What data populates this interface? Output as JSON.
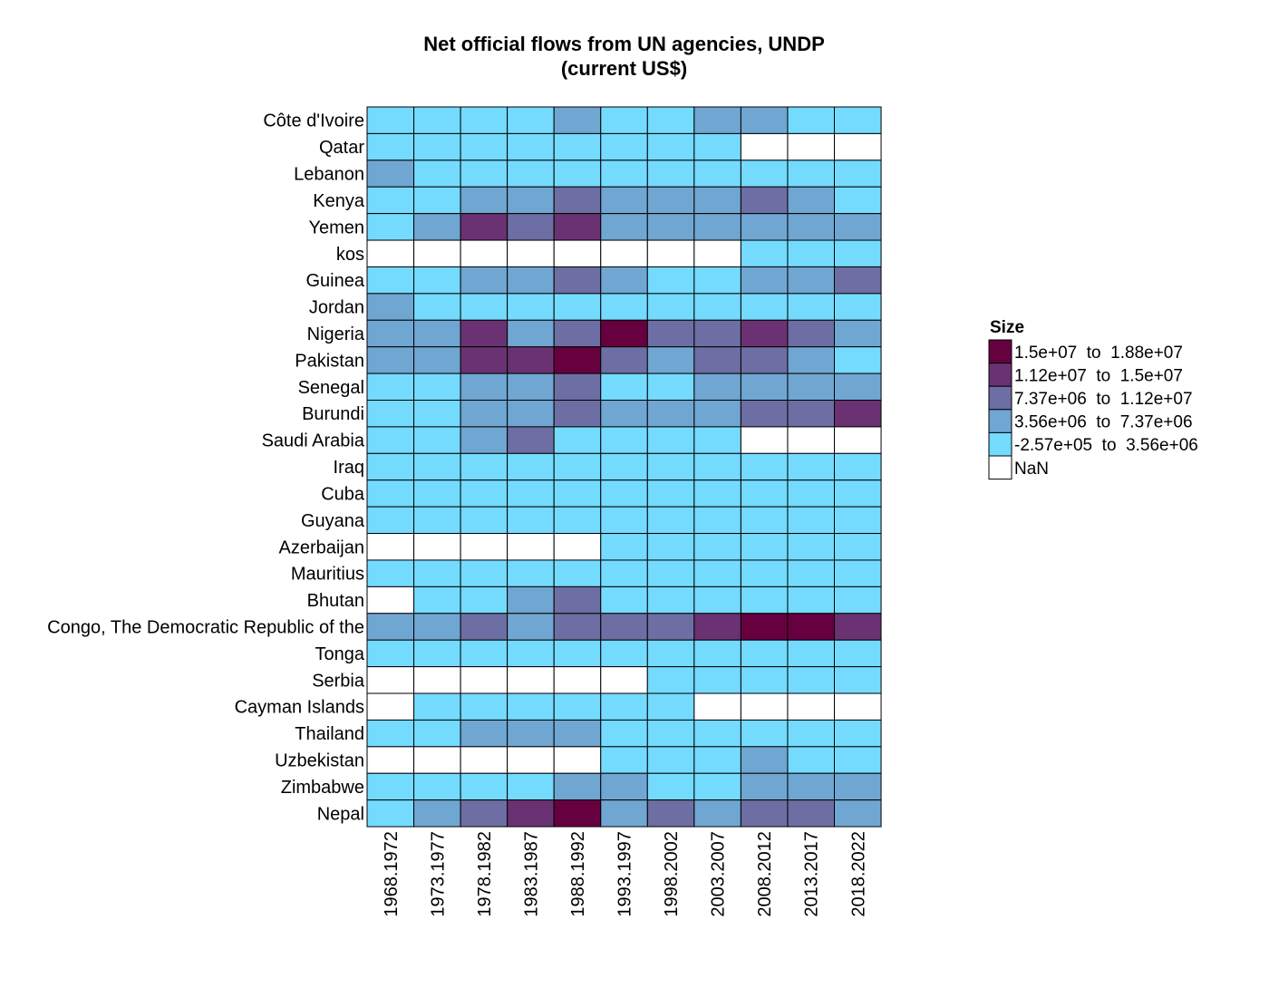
{
  "chart_data": {
    "type": "heatmap",
    "title_lines": [
      "Net official flows from UN agencies, UNDP",
      "(current US$)"
    ],
    "x_categories": [
      "1968.1972",
      "1973.1977",
      "1978.1982",
      "1983.1987",
      "1988.1992",
      "1993.1997",
      "1998.2002",
      "2003.2007",
      "2008.2012",
      "2013.2017",
      "2018.2022"
    ],
    "y_categories": [
      "Côte d'Ivoire",
      "Qatar",
      "Lebanon",
      "Kenya",
      "Yemen",
      "kos",
      "Guinea",
      "Jordan",
      "Nigeria",
      "Pakistan",
      "Senegal",
      "Burundi",
      "Saudi Arabia",
      "Iraq",
      "Cuba",
      "Guyana",
      "Azerbaijan",
      "Mauritius",
      "Bhutan",
      "Congo, The Democratic Republic of the",
      "Tonga",
      "Serbia",
      "Cayman Islands",
      "Thailand",
      "Uzbekistan",
      "Zimbabwe",
      "Nepal"
    ],
    "legend": {
      "title": "Size",
      "placement": "right",
      "bins": [
        {
          "label": "1.5e+07  to  1.88e+07",
          "color": "#67003f"
        },
        {
          "label": "1.12e+07  to  1.5e+07",
          "color": "#6a3272"
        },
        {
          "label": "7.37e+06  to  1.12e+07",
          "color": "#6d6ea3"
        },
        {
          "label": "3.56e+06  to  7.37e+06",
          "color": "#70a6d2"
        },
        {
          "label": "-2.57e+05  to  3.56e+06",
          "color": "#74dbff"
        },
        {
          "label": "NaN",
          "color": "#ffffff"
        }
      ]
    },
    "bin_index_note_levels": [
      0,
      1,
      2,
      3,
      4,
      5
    ],
    "cells": [
      [
        4,
        4,
        4,
        4,
        3,
        4,
        4,
        3,
        3,
        4,
        4
      ],
      [
        4,
        4,
        4,
        4,
        4,
        4,
        4,
        4,
        5,
        5,
        5
      ],
      [
        3,
        4,
        4,
        4,
        4,
        4,
        4,
        4,
        4,
        4,
        4
      ],
      [
        4,
        4,
        3,
        3,
        2,
        3,
        3,
        3,
        2,
        3,
        4
      ],
      [
        4,
        3,
        1,
        2,
        1,
        3,
        3,
        3,
        3,
        3,
        3
      ],
      [
        5,
        5,
        5,
        5,
        5,
        5,
        5,
        5,
        4,
        4,
        4
      ],
      [
        4,
        4,
        3,
        3,
        2,
        3,
        4,
        4,
        3,
        3,
        2
      ],
      [
        3,
        4,
        4,
        4,
        4,
        4,
        4,
        4,
        4,
        4,
        4
      ],
      [
        3,
        3,
        1,
        3,
        2,
        0,
        2,
        2,
        1,
        2,
        3
      ],
      [
        3,
        3,
        1,
        1,
        0,
        2,
        3,
        2,
        2,
        3,
        4
      ],
      [
        4,
        4,
        3,
        3,
        2,
        4,
        4,
        3,
        3,
        3,
        3
      ],
      [
        4,
        4,
        3,
        3,
        2,
        3,
        3,
        3,
        2,
        2,
        1
      ],
      [
        4,
        4,
        3,
        2,
        4,
        4,
        4,
        4,
        5,
        5,
        5
      ],
      [
        4,
        4,
        4,
        4,
        4,
        4,
        4,
        4,
        4,
        4,
        4
      ],
      [
        4,
        4,
        4,
        4,
        4,
        4,
        4,
        4,
        4,
        4,
        4
      ],
      [
        4,
        4,
        4,
        4,
        4,
        4,
        4,
        4,
        4,
        4,
        4
      ],
      [
        5,
        5,
        5,
        5,
        5,
        4,
        4,
        4,
        4,
        4,
        4
      ],
      [
        4,
        4,
        4,
        4,
        4,
        4,
        4,
        4,
        4,
        4,
        4
      ],
      [
        5,
        4,
        4,
        3,
        2,
        4,
        4,
        4,
        4,
        4,
        4
      ],
      [
        3,
        3,
        2,
        3,
        2,
        2,
        2,
        1,
        0,
        0,
        1
      ],
      [
        4,
        4,
        4,
        4,
        4,
        4,
        4,
        4,
        4,
        4,
        4
      ],
      [
        5,
        5,
        5,
        5,
        5,
        5,
        4,
        4,
        4,
        4,
        4
      ],
      [
        5,
        4,
        4,
        4,
        4,
        4,
        4,
        5,
        5,
        5,
        5
      ],
      [
        4,
        4,
        3,
        3,
        3,
        4,
        4,
        4,
        4,
        4,
        4
      ],
      [
        5,
        5,
        5,
        5,
        5,
        4,
        4,
        4,
        3,
        4,
        4
      ],
      [
        4,
        4,
        4,
        4,
        3,
        3,
        4,
        4,
        3,
        3,
        3
      ],
      [
        4,
        3,
        2,
        1,
        0,
        3,
        2,
        3,
        2,
        2,
        3
      ]
    ]
  }
}
